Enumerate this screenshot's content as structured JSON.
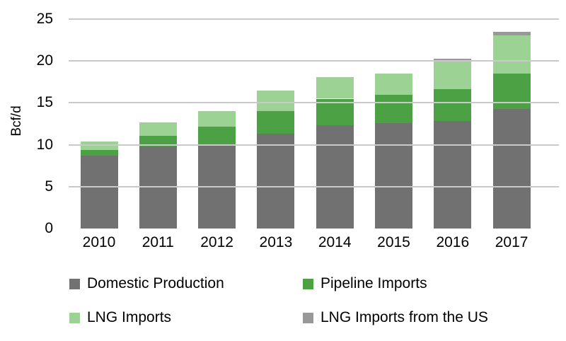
{
  "chart_data": {
    "type": "bar",
    "stacked": true,
    "title": "",
    "xlabel": "",
    "ylabel": "Bcf/d",
    "ylim": [
      0,
      25
    ],
    "yticks": [
      "0",
      "5",
      "10",
      "15",
      "20",
      "25"
    ],
    "grid": true,
    "gridline_color": "#c9c9c9",
    "legend_position": "bottom",
    "categories": [
      "2010",
      "2011",
      "2012",
      "2013",
      "2014",
      "2015",
      "2016",
      "2017"
    ],
    "series": [
      {
        "name": "Domestic Production",
        "color": "#717171",
        "values": [
          8.7,
          9.8,
          10.0,
          11.3,
          12.3,
          12.6,
          12.8,
          14.3
        ]
      },
      {
        "name": "Pipeline Imports",
        "color": "#4ba143",
        "values": [
          0.7,
          1.3,
          2.2,
          2.7,
          3.2,
          3.4,
          3.8,
          4.2
        ]
      },
      {
        "name": "LNG Imports",
        "color": "#9cd294",
        "values": [
          1.0,
          1.6,
          1.8,
          2.5,
          2.6,
          2.5,
          3.3,
          4.6
        ]
      },
      {
        "name": "LNG Imports from the US",
        "color": "#989898",
        "values": [
          0,
          0,
          0,
          0,
          0,
          0,
          0.4,
          0.4
        ]
      }
    ],
    "totals": [
      10.4,
      12.7,
      14.0,
      16.5,
      18.1,
      18.5,
      20.3,
      23.5
    ]
  }
}
